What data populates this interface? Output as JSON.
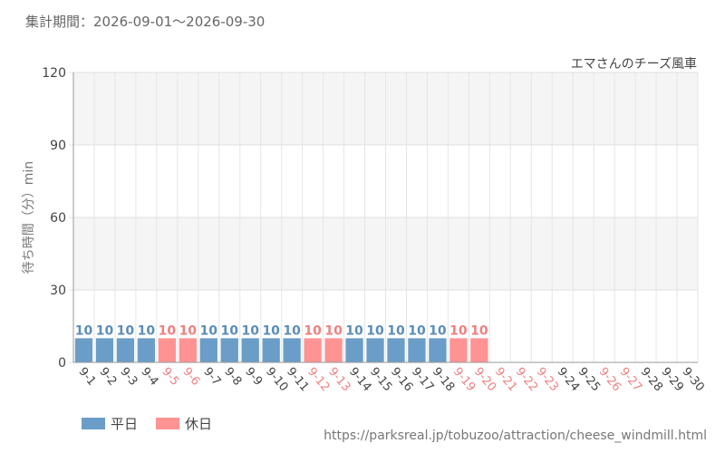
{
  "period_label": "集計期間：2026-09-01～2026-09-30",
  "source_url": "https://parksreal.jp/tobuzoo/attraction/cheese_windmill.html",
  "legend": {
    "weekday": {
      "label": "平日",
      "color": "#6a9dc7"
    },
    "holiday": {
      "label": "休日",
      "color": "#ff9393"
    }
  },
  "chart_data": {
    "type": "bar",
    "title": "エマさんのチーズ風車",
    "ylabel": "待ち時間（分）min",
    "xlabel": "",
    "ylim": [
      0,
      120
    ],
    "yticks": [
      0,
      30,
      60,
      90,
      120
    ],
    "grid": true,
    "legend_position": "bottom-left",
    "categories": [
      "9-1",
      "9-2",
      "9-3",
      "9-4",
      "9-5",
      "9-6",
      "9-7",
      "9-8",
      "9-9",
      "9-10",
      "9-11",
      "9-12",
      "9-13",
      "9-14",
      "9-15",
      "9-16",
      "9-17",
      "9-18",
      "9-19",
      "9-20",
      "9-21",
      "9-22",
      "9-23",
      "9-24",
      "9-25",
      "9-26",
      "9-27",
      "9-28",
      "9-29",
      "9-30"
    ],
    "day_type": [
      "平日",
      "平日",
      "平日",
      "平日",
      "休日",
      "休日",
      "平日",
      "平日",
      "平日",
      "平日",
      "平日",
      "休日",
      "休日",
      "平日",
      "平日",
      "平日",
      "平日",
      "平日",
      "休日",
      "休日",
      "休日",
      "休日",
      "休日",
      "平日",
      "平日",
      "休日",
      "休日",
      "平日",
      "平日",
      "平日"
    ],
    "values": [
      10,
      10,
      10,
      10,
      10,
      10,
      10,
      10,
      10,
      10,
      10,
      10,
      10,
      10,
      10,
      10,
      10,
      10,
      10,
      10,
      null,
      null,
      null,
      null,
      null,
      null,
      null,
      null,
      null,
      null
    ],
    "weekday_label_color": "#444444",
    "holiday_label_color": "#f08080"
  }
}
